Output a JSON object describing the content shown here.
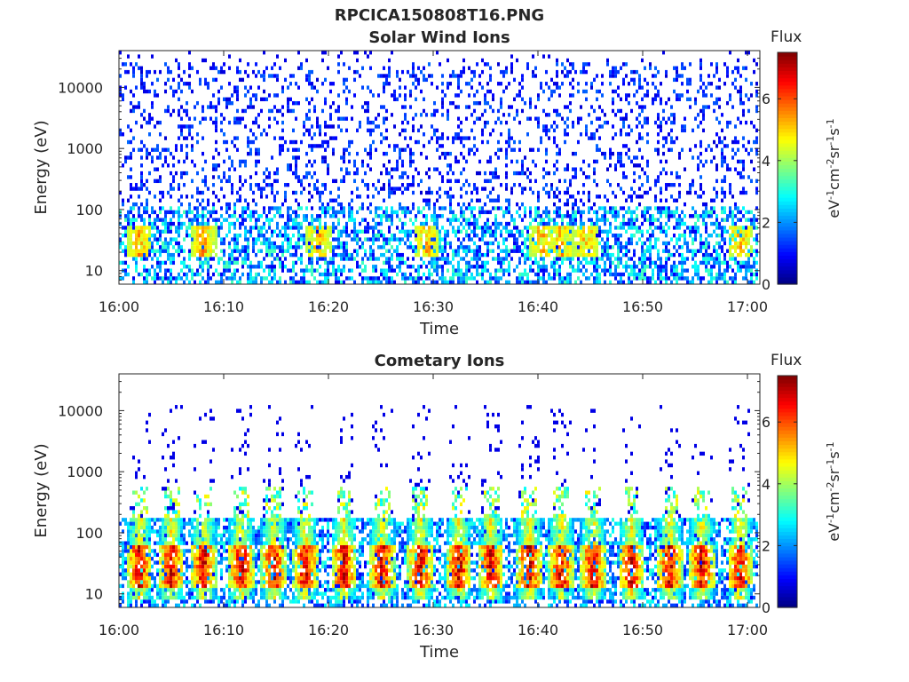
{
  "main_title": "RPCICA150808T16.PNG",
  "chart_data": [
    {
      "type": "heatmap",
      "title": "Solar Wind Ions",
      "xlabel": "Time",
      "ylabel": "Energy (eV)",
      "x_ticks": [
        "16:00",
        "16:10",
        "16:20",
        "16:30",
        "16:40",
        "16:50",
        "17:00"
      ],
      "x_range": [
        "16:00",
        "17:01"
      ],
      "y_scale": "log",
      "y_ticks": [
        "10",
        "100",
        "1000",
        "10000"
      ],
      "y_range": [
        6,
        40000
      ],
      "colorbar": {
        "label": "Flux",
        "unit_label": "eV-1cm-2sr-1s-1",
        "ticks": [
          "0",
          "2",
          "4",
          "6"
        ],
        "range": [
          0,
          7.5
        ],
        "colormap": "jet"
      },
      "description": "Sparse low-flux (0-2) counts across all energies; moderate flux 2-4 below ~100 eV; peaks ~4-5 near 20-40 eV around 16:02, 16:08, 16:40-16:42, 16:44, 17:00"
    },
    {
      "type": "heatmap",
      "title": "Cometary Ions",
      "xlabel": "Time",
      "ylabel": "Energy (eV)",
      "x_ticks": [
        "16:00",
        "16:10",
        "16:20",
        "16:30",
        "16:40",
        "16:50",
        "17:00"
      ],
      "x_range": [
        "16:00",
        "17:01"
      ],
      "y_scale": "log",
      "y_ticks": [
        "10",
        "100",
        "1000",
        "10000"
      ],
      "y_range": [
        6,
        40000
      ],
      "colorbar": {
        "label": "Flux",
        "unit_label": "eV-1cm-2sr-1s-1",
        "ticks": [
          "0",
          "2",
          "4",
          "6"
        ],
        "range": [
          0,
          7.5
        ],
        "colormap": "jet"
      },
      "description": "Quasi-periodic bursts every ~3 min with peak flux 6-7 at ~20-40 eV; low-flux dots above 1 keV"
    }
  ]
}
